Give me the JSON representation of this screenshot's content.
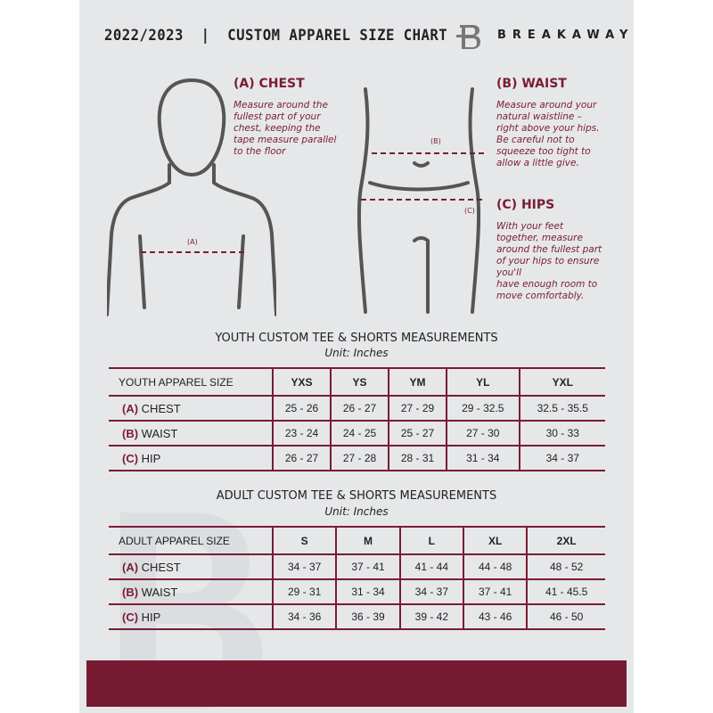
{
  "header": {
    "title": "2022/2023  |  CUSTOM APPAREL SIZE CHART",
    "brand": "BREAKAWAY"
  },
  "measures": {
    "chest": {
      "heading": "(A) CHEST",
      "text": [
        "Measure around the",
        "fullest part of your",
        "chest, keeping the",
        "tape measure parallel",
        "to the floor"
      ],
      "marker": "(A)"
    },
    "waist": {
      "heading": "(B) WAIST",
      "text": [
        "Measure around your",
        "natural waistline –",
        "right above your hips.",
        "Be careful not to",
        "squeeze too tight to",
        "allow a little give."
      ],
      "marker": "(B)"
    },
    "hips": {
      "heading": "(C) HIPS",
      "text": [
        "With your feet",
        "together, measure",
        "around the fullest part",
        "of your hips to ensure",
        "you'll",
        "have enough room to",
        "move comfortably."
      ],
      "marker": "(C)"
    }
  },
  "youth": {
    "title": "YOUTH CUSTOM TEE & SHORTS MEASUREMENTS",
    "unit": "Unit: Inches",
    "header": [
      "YOUTH APPAREL SIZE",
      "YXS",
      "YS",
      "YM",
      "YL",
      "YXL"
    ],
    "rows": [
      {
        "letter": "(A)",
        "label": "CHEST",
        "values": [
          "25 - 26",
          "26 - 27",
          "27 - 29",
          "29 - 32.5",
          "32.5 - 35.5"
        ]
      },
      {
        "letter": "(B)",
        "label": "WAIST",
        "values": [
          "23 - 24",
          "24 - 25",
          "25 - 27",
          "27 - 30",
          "30 - 33"
        ]
      },
      {
        "letter": "(C)",
        "label": "HIP",
        "values": [
          "26 - 27",
          "27 - 28",
          "28 - 31",
          "31 - 34",
          "34 - 37"
        ]
      }
    ]
  },
  "adult": {
    "title": "ADULT CUSTOM TEE & SHORTS MEASUREMENTS",
    "unit": "Unit: Inches",
    "header": [
      "ADULT APPAREL SIZE",
      "S",
      "M",
      "L",
      "XL",
      "2XL"
    ],
    "rows": [
      {
        "letter": "(A)",
        "label": "CHEST",
        "values": [
          "34 - 37",
          "37 - 41",
          "41 - 44",
          "44 - 48",
          "48 - 52"
        ]
      },
      {
        "letter": "(B)",
        "label": "WAIST",
        "values": [
          "29 - 31",
          "31 - 34",
          "34 - 37",
          "37 - 41",
          "41 - 45.5"
        ]
      },
      {
        "letter": "(C)",
        "label": "HIP",
        "values": [
          "34 - 36",
          "36 - 39",
          "39 - 42",
          "43 - 46",
          "46 - 50"
        ]
      }
    ]
  },
  "colors": {
    "accent": "#7a1c33",
    "background": "#e6e7e9"
  }
}
